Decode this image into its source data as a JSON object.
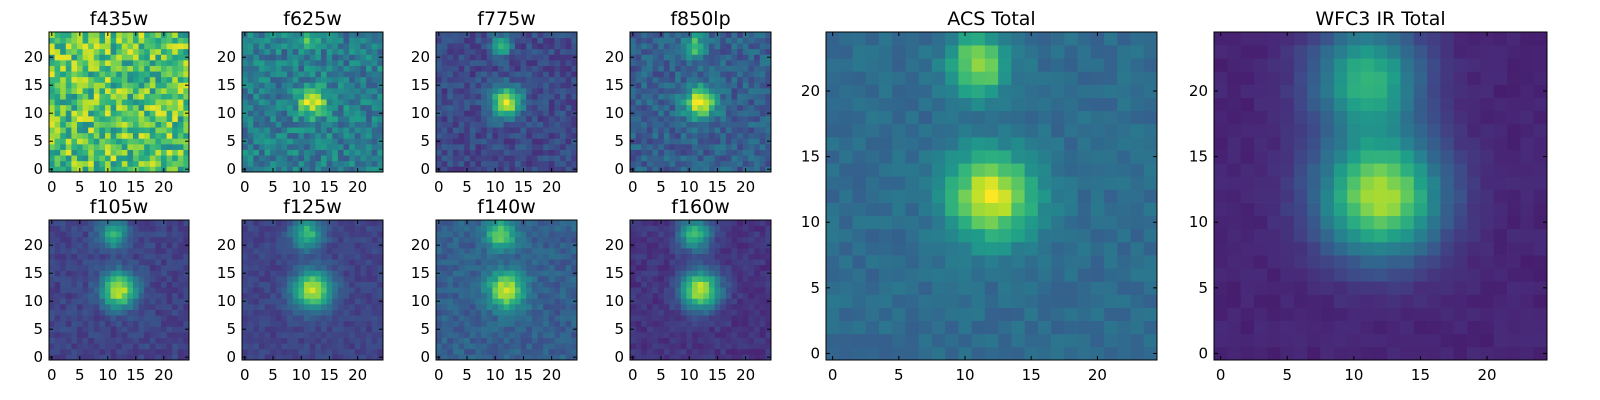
{
  "chart_data": {
    "type": "heatmap",
    "colormap": "viridis",
    "grid_size": 25,
    "panels": [
      {
        "title": "f435w",
        "xticks": [
          0,
          5,
          10,
          15,
          20
        ],
        "yticks": [
          0,
          5,
          10,
          15,
          20
        ],
        "sources": [],
        "background": 0.72,
        "noise": 0.5,
        "seed": 11
      },
      {
        "title": "f625w",
        "xticks": [
          0,
          5,
          10,
          15,
          20
        ],
        "yticks": [
          0,
          5,
          10,
          15,
          20
        ],
        "sources": [
          {
            "x": 12,
            "y": 12,
            "amp": 0.55,
            "sigma": 1.8
          },
          {
            "x": 11,
            "y": 23,
            "amp": 0.35,
            "sigma": 1.2
          }
        ],
        "background": 0.42,
        "noise": 0.3,
        "seed": 23
      },
      {
        "title": "f775w",
        "xticks": [
          0,
          5,
          10,
          15,
          20
        ],
        "yticks": [
          0,
          5,
          10,
          15,
          20
        ],
        "sources": [
          {
            "x": 12,
            "y": 12,
            "amp": 0.72,
            "sigma": 1.9
          },
          {
            "x": 11,
            "y": 22,
            "amp": 0.48,
            "sigma": 1.3
          }
        ],
        "background": 0.22,
        "noise": 0.18,
        "seed": 37
      },
      {
        "title": "f850lp",
        "xticks": [
          0,
          5,
          10,
          15,
          20
        ],
        "yticks": [
          0,
          5,
          10,
          15,
          20
        ],
        "sources": [
          {
            "x": 12,
            "y": 12,
            "amp": 0.68,
            "sigma": 2.0
          },
          {
            "x": 11,
            "y": 22,
            "amp": 0.45,
            "sigma": 1.4
          }
        ],
        "background": 0.3,
        "noise": 0.22,
        "seed": 41
      },
      {
        "title": "f105w",
        "xticks": [
          0,
          5,
          10,
          15,
          20
        ],
        "yticks": [
          0,
          5,
          10,
          15,
          20
        ],
        "sources": [
          {
            "x": 12,
            "y": 12,
            "amp": 0.72,
            "sigma": 2.2
          },
          {
            "x": 11,
            "y": 22,
            "amp": 0.48,
            "sigma": 1.8
          }
        ],
        "background": 0.2,
        "noise": 0.12,
        "seed": 53
      },
      {
        "title": "f125w",
        "xticks": [
          0,
          5,
          10,
          15,
          20
        ],
        "yticks": [
          0,
          5,
          10,
          15,
          20
        ],
        "sources": [
          {
            "x": 12,
            "y": 12,
            "amp": 0.72,
            "sigma": 2.4
          },
          {
            "x": 11,
            "y": 22,
            "amp": 0.5,
            "sigma": 1.9
          }
        ],
        "background": 0.2,
        "noise": 0.1,
        "seed": 61
      },
      {
        "title": "f140w",
        "xticks": [
          0,
          5,
          10,
          15,
          20
        ],
        "yticks": [
          0,
          5,
          10,
          15,
          20
        ],
        "sources": [
          {
            "x": 12,
            "y": 12,
            "amp": 0.62,
            "sigma": 2.3
          },
          {
            "x": 11,
            "y": 22,
            "amp": 0.5,
            "sigma": 1.9
          }
        ],
        "background": 0.3,
        "noise": 0.14,
        "seed": 71
      },
      {
        "title": "f160w",
        "xticks": [
          0,
          5,
          10,
          15,
          20
        ],
        "yticks": [
          0,
          5,
          10,
          15,
          20
        ],
        "sources": [
          {
            "x": 12,
            "y": 12,
            "amp": 0.78,
            "sigma": 2.4
          },
          {
            "x": 11,
            "y": 22,
            "amp": 0.55,
            "sigma": 2.0
          }
        ],
        "background": 0.15,
        "noise": 0.1,
        "seed": 83
      },
      {
        "title": "ACS Total",
        "xticks": [
          0,
          5,
          10,
          15,
          20
        ],
        "yticks": [
          0,
          5,
          10,
          15,
          20
        ],
        "sources": [
          {
            "x": 12,
            "y": 12,
            "amp": 0.62,
            "sigma": 2.3
          },
          {
            "x": 11,
            "y": 22,
            "amp": 0.5,
            "sigma": 1.6
          }
        ],
        "background": 0.35,
        "noise": 0.1,
        "seed": 97
      },
      {
        "title": "WFC3 IR Total",
        "xticks": [
          0,
          5,
          10,
          15,
          20
        ],
        "yticks": [
          0,
          5,
          10,
          15,
          20
        ],
        "sources": [
          {
            "x": 12,
            "y": 12,
            "amp": 0.78,
            "sigma": 3.2
          },
          {
            "x": 11,
            "y": 21,
            "amp": 0.55,
            "sigma": 2.8
          }
        ],
        "background": 0.1,
        "noise": 0.04,
        "seed": 103
      }
    ]
  }
}
